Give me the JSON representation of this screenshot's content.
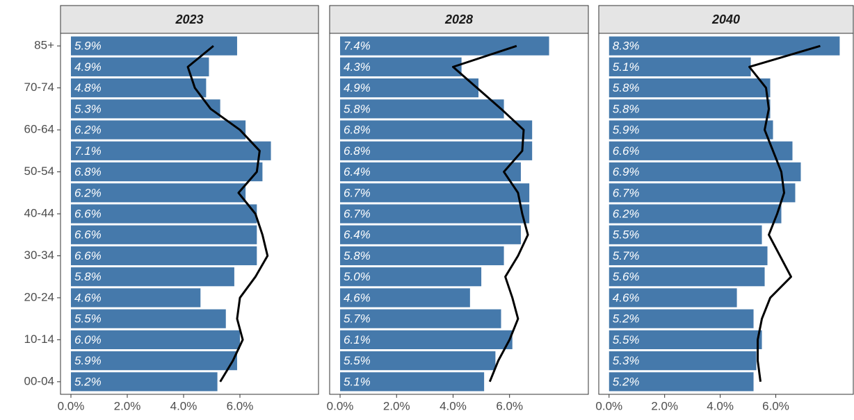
{
  "chart_data": {
    "type": "bar",
    "categories": [
      "00-04",
      null,
      "10-14",
      null,
      "20-24",
      null,
      "30-34",
      null,
      "40-44",
      null,
      "50-54",
      null,
      "60-64",
      null,
      "70-74",
      null,
      "85+"
    ],
    "xlim": [
      -0.37,
      8.79
    ],
    "xticks": [
      {
        "value": 0,
        "label": "0.0%"
      },
      {
        "value": 2,
        "label": "2.0%"
      },
      {
        "value": 4,
        "label": "4.0%"
      },
      {
        "value": 6,
        "label": "6.0%"
      }
    ],
    "bar_color": "#4579ab",
    "line_color": "#000000",
    "panels": [
      {
        "title": "2023",
        "values": [
          5.2,
          5.9,
          6.0,
          5.5,
          4.6,
          5.8,
          6.6,
          6.6,
          6.6,
          6.2,
          6.8,
          7.1,
          6.2,
          5.3,
          4.8,
          4.9,
          5.9
        ],
        "value_labels": [
          "5.2%",
          "5.9%",
          "6.0%",
          "5.5%",
          "4.6%",
          "5.8%",
          "6.6%",
          "6.6%",
          "6.6%",
          "6.2%",
          "6.8%",
          "7.1%",
          "6.2%",
          "5.3%",
          "4.8%",
          "4.9%",
          "5.9%"
        ],
        "line": [
          5.3,
          5.75,
          6.1,
          5.9,
          6.0,
          6.55,
          6.98,
          6.8,
          6.55,
          5.95,
          6.6,
          6.7,
          6.0,
          4.96,
          4.4,
          4.15,
          5.06
        ]
      },
      {
        "title": "2028",
        "values": [
          5.1,
          5.5,
          6.1,
          5.7,
          4.6,
          5.0,
          5.8,
          6.4,
          6.7,
          6.7,
          6.4,
          6.8,
          6.8,
          5.8,
          4.9,
          4.3,
          7.4
        ],
        "value_labels": [
          "5.1%",
          "5.5%",
          "6.1%",
          "5.7%",
          "4.6%",
          "5.0%",
          "5.8%",
          "6.4%",
          "6.7%",
          "6.7%",
          "6.4%",
          "6.8%",
          "6.8%",
          "5.8%",
          "4.9%",
          "4.3%",
          "7.4%"
        ],
        "line": [
          5.3,
          5.6,
          6.0,
          6.3,
          6.1,
          5.85,
          6.3,
          6.65,
          6.45,
          6.3,
          5.8,
          6.45,
          6.5,
          5.7,
          4.85,
          4.0,
          6.25
        ]
      },
      {
        "title": "2040",
        "values": [
          5.2,
          5.3,
          5.5,
          5.2,
          4.6,
          5.6,
          5.7,
          5.5,
          6.2,
          6.7,
          6.9,
          6.6,
          5.9,
          5.8,
          5.8,
          5.1,
          8.3
        ],
        "value_labels": [
          "5.2%",
          "5.3%",
          "5.5%",
          "5.2%",
          "4.6%",
          "5.6%",
          "5.7%",
          "5.5%",
          "6.2%",
          "6.7%",
          "6.9%",
          "6.6%",
          "5.9%",
          "5.8%",
          "5.8%",
          "5.1%",
          "8.3%"
        ],
        "line": [
          5.45,
          5.35,
          5.35,
          5.5,
          5.8,
          6.55,
          6.15,
          5.75,
          6.05,
          6.3,
          6.2,
          5.9,
          5.6,
          5.75,
          5.65,
          5.05,
          7.6
        ]
      }
    ]
  }
}
